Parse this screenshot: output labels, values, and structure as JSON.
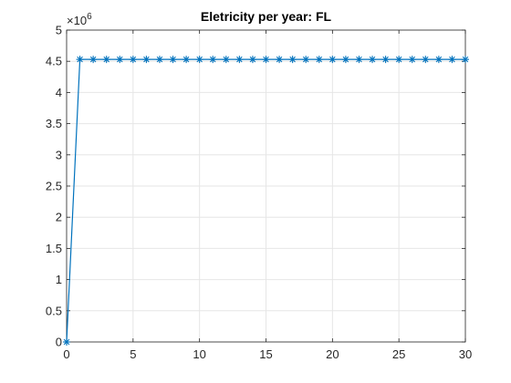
{
  "chart_data": {
    "type": "line",
    "title": "Eletricity per year: FL",
    "xlabel": "",
    "ylabel": "",
    "xlim": [
      0,
      30
    ],
    "ylim": [
      0,
      5
    ],
    "y_exponent_label": "×10",
    "y_exponent_power": "6",
    "grid": true,
    "marker": "asterisk",
    "line_color": "#0072BD",
    "x_ticks": [
      0,
      5,
      10,
      15,
      20,
      25,
      30
    ],
    "y_ticks": [
      0,
      0.5,
      1,
      1.5,
      2,
      2.5,
      3,
      3.5,
      4,
      4.5,
      5
    ],
    "series": [
      {
        "x": [
          0,
          1,
          2,
          3,
          4,
          5,
          6,
          7,
          8,
          9,
          10,
          11,
          12,
          13,
          14,
          15,
          16,
          17,
          18,
          19,
          20,
          21,
          22,
          23,
          24,
          25,
          26,
          27,
          28,
          29,
          30
        ],
        "y": [
          0,
          4.53,
          4.53,
          4.53,
          4.53,
          4.53,
          4.53,
          4.53,
          4.53,
          4.53,
          4.53,
          4.53,
          4.53,
          4.53,
          4.53,
          4.53,
          4.53,
          4.53,
          4.53,
          4.53,
          4.53,
          4.53,
          4.53,
          4.53,
          4.53,
          4.53,
          4.53,
          4.53,
          4.53,
          4.53,
          4.53
        ]
      }
    ]
  }
}
